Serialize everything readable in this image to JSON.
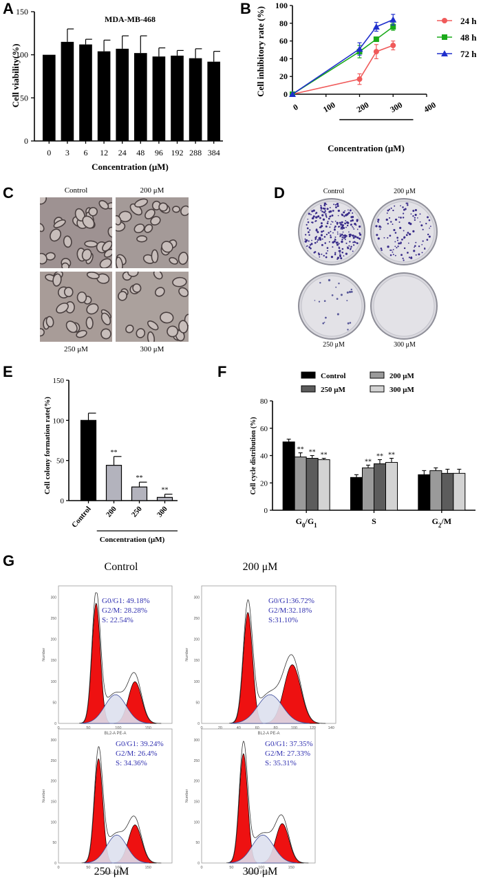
{
  "panels": {
    "A": {
      "letter": "A"
    },
    "B": {
      "letter": "B"
    },
    "C": {
      "letter": "C",
      "captions": [
        "Control",
        "200 μM",
        "250 μM",
        "300 μM"
      ]
    },
    "D": {
      "letter": "D",
      "captions": [
        "Control",
        "200 μM",
        "250 μM",
        "300 μM"
      ]
    },
    "E": {
      "letter": "E"
    },
    "F": {
      "letter": "F"
    },
    "G": {
      "letter": "G",
      "titles": [
        "Control",
        "200 μM",
        "250 μM",
        "300 μM"
      ],
      "stats": [
        [
          "G0/G1: 49.18%",
          "G2/M: 28.28%",
          "S: 22.54%"
        ],
        [
          "G0/G1:36.72%",
          "G2/M:32.18%",
          "S:31.10%"
        ],
        [
          "G0/G1: 39.24%",
          "G2/M: 26.4%",
          "S: 34.36%"
        ],
        [
          "G0/G1: 37.35%",
          "G2/M: 27.33%",
          "S: 35.31%"
        ]
      ],
      "xlabel": "BL2-A PE-A",
      "ylabel": "Number"
    }
  },
  "chart_data": [
    {
      "id": "A",
      "type": "bar",
      "title": "MDA-MB-468",
      "xlabel": "Concentration (μM)",
      "ylabel": "Cell viability(%)",
      "categories": [
        "0",
        "3",
        "6",
        "12",
        "24",
        "48",
        "96",
        "192",
        "288",
        "384"
      ],
      "values": [
        100,
        115,
        112,
        104,
        107,
        102,
        98,
        99,
        96,
        92
      ],
      "errors": [
        0,
        15,
        6,
        13,
        15,
        20,
        10,
        6,
        11,
        12
      ],
      "ylim": [
        0,
        150
      ],
      "yticks": [
        "0",
        "50",
        "100",
        "150"
      ],
      "colors": {
        "bar": "#000000"
      }
    },
    {
      "id": "B",
      "type": "line",
      "xlabel": "Concentration (μM)",
      "ylabel": "Cell inhibitory rate (%)",
      "xlim": [
        0,
        400
      ],
      "ylim": [
        0,
        100
      ],
      "xticks": [
        "0",
        "100",
        "200",
        "300",
        "400"
      ],
      "yticks": [
        "0",
        "20",
        "40",
        "60",
        "80",
        "100"
      ],
      "x": [
        0,
        200,
        250,
        300
      ],
      "series": [
        {
          "name": "24 h",
          "values": [
            0,
            17,
            48,
            55
          ],
          "errors": [
            0,
            6,
            8,
            5
          ],
          "color": "#f05a5a",
          "marker": "circle"
        },
        {
          "name": "48 h",
          "values": [
            0,
            48,
            62,
            76
          ],
          "errors": [
            0,
            7,
            2,
            4
          ],
          "color": "#1aaa1a",
          "marker": "square"
        },
        {
          "name": "72 h",
          "values": [
            0,
            51,
            76,
            84
          ],
          "errors": [
            0,
            7,
            5,
            6
          ],
          "color": "#1f2fcc",
          "marker": "triangle"
        }
      ],
      "legend": "right"
    },
    {
      "id": "E",
      "type": "bar",
      "xlabel": "Concentration (μM)",
      "ylabel": "Cell colony formation rate(%)",
      "categories": [
        "Control",
        "200",
        "250",
        "300"
      ],
      "values": [
        100,
        44,
        17,
        4
      ],
      "errors": [
        9,
        11,
        6,
        4
      ],
      "significance": [
        "",
        "**",
        "**",
        "**"
      ],
      "ylim": [
        0,
        150
      ],
      "yticks": [
        "0",
        "50",
        "100",
        "150"
      ],
      "colors": {
        "fills": [
          "#000000",
          "#b3b3bd",
          "#b3b3bd",
          "#b3b3bd"
        ]
      }
    },
    {
      "id": "F",
      "type": "bar",
      "ylabel": "Cell cycle distribution (%)",
      "categories": [
        "G0/G1",
        "S",
        "G2/M"
      ],
      "ylim": [
        0,
        80
      ],
      "yticks": [
        "0",
        "20",
        "40",
        "60",
        "80"
      ],
      "series": [
        {
          "name": "Control",
          "values": [
            50,
            24,
            26
          ],
          "errors": [
            2,
            2,
            3
          ],
          "color": "#000000"
        },
        {
          "name": "200 μM",
          "values": [
            39,
            31,
            29
          ],
          "errors": [
            3,
            2,
            2
          ],
          "color": "#9a9a9a"
        },
        {
          "name": "250 μM",
          "values": [
            38,
            34,
            27
          ],
          "errors": [
            2,
            3,
            3
          ],
          "color": "#5c5c5c"
        },
        {
          "name": "300 μM",
          "values": [
            37,
            35,
            27
          ],
          "errors": [
            1,
            3,
            3
          ],
          "color": "#d3d3d3"
        }
      ],
      "significance": [
        [
          "",
          "**",
          "**",
          "**"
        ],
        [
          "",
          "**",
          "**",
          "**"
        ],
        [
          "",
          "",
          "",
          ""
        ]
      ],
      "legend": "top"
    }
  ]
}
